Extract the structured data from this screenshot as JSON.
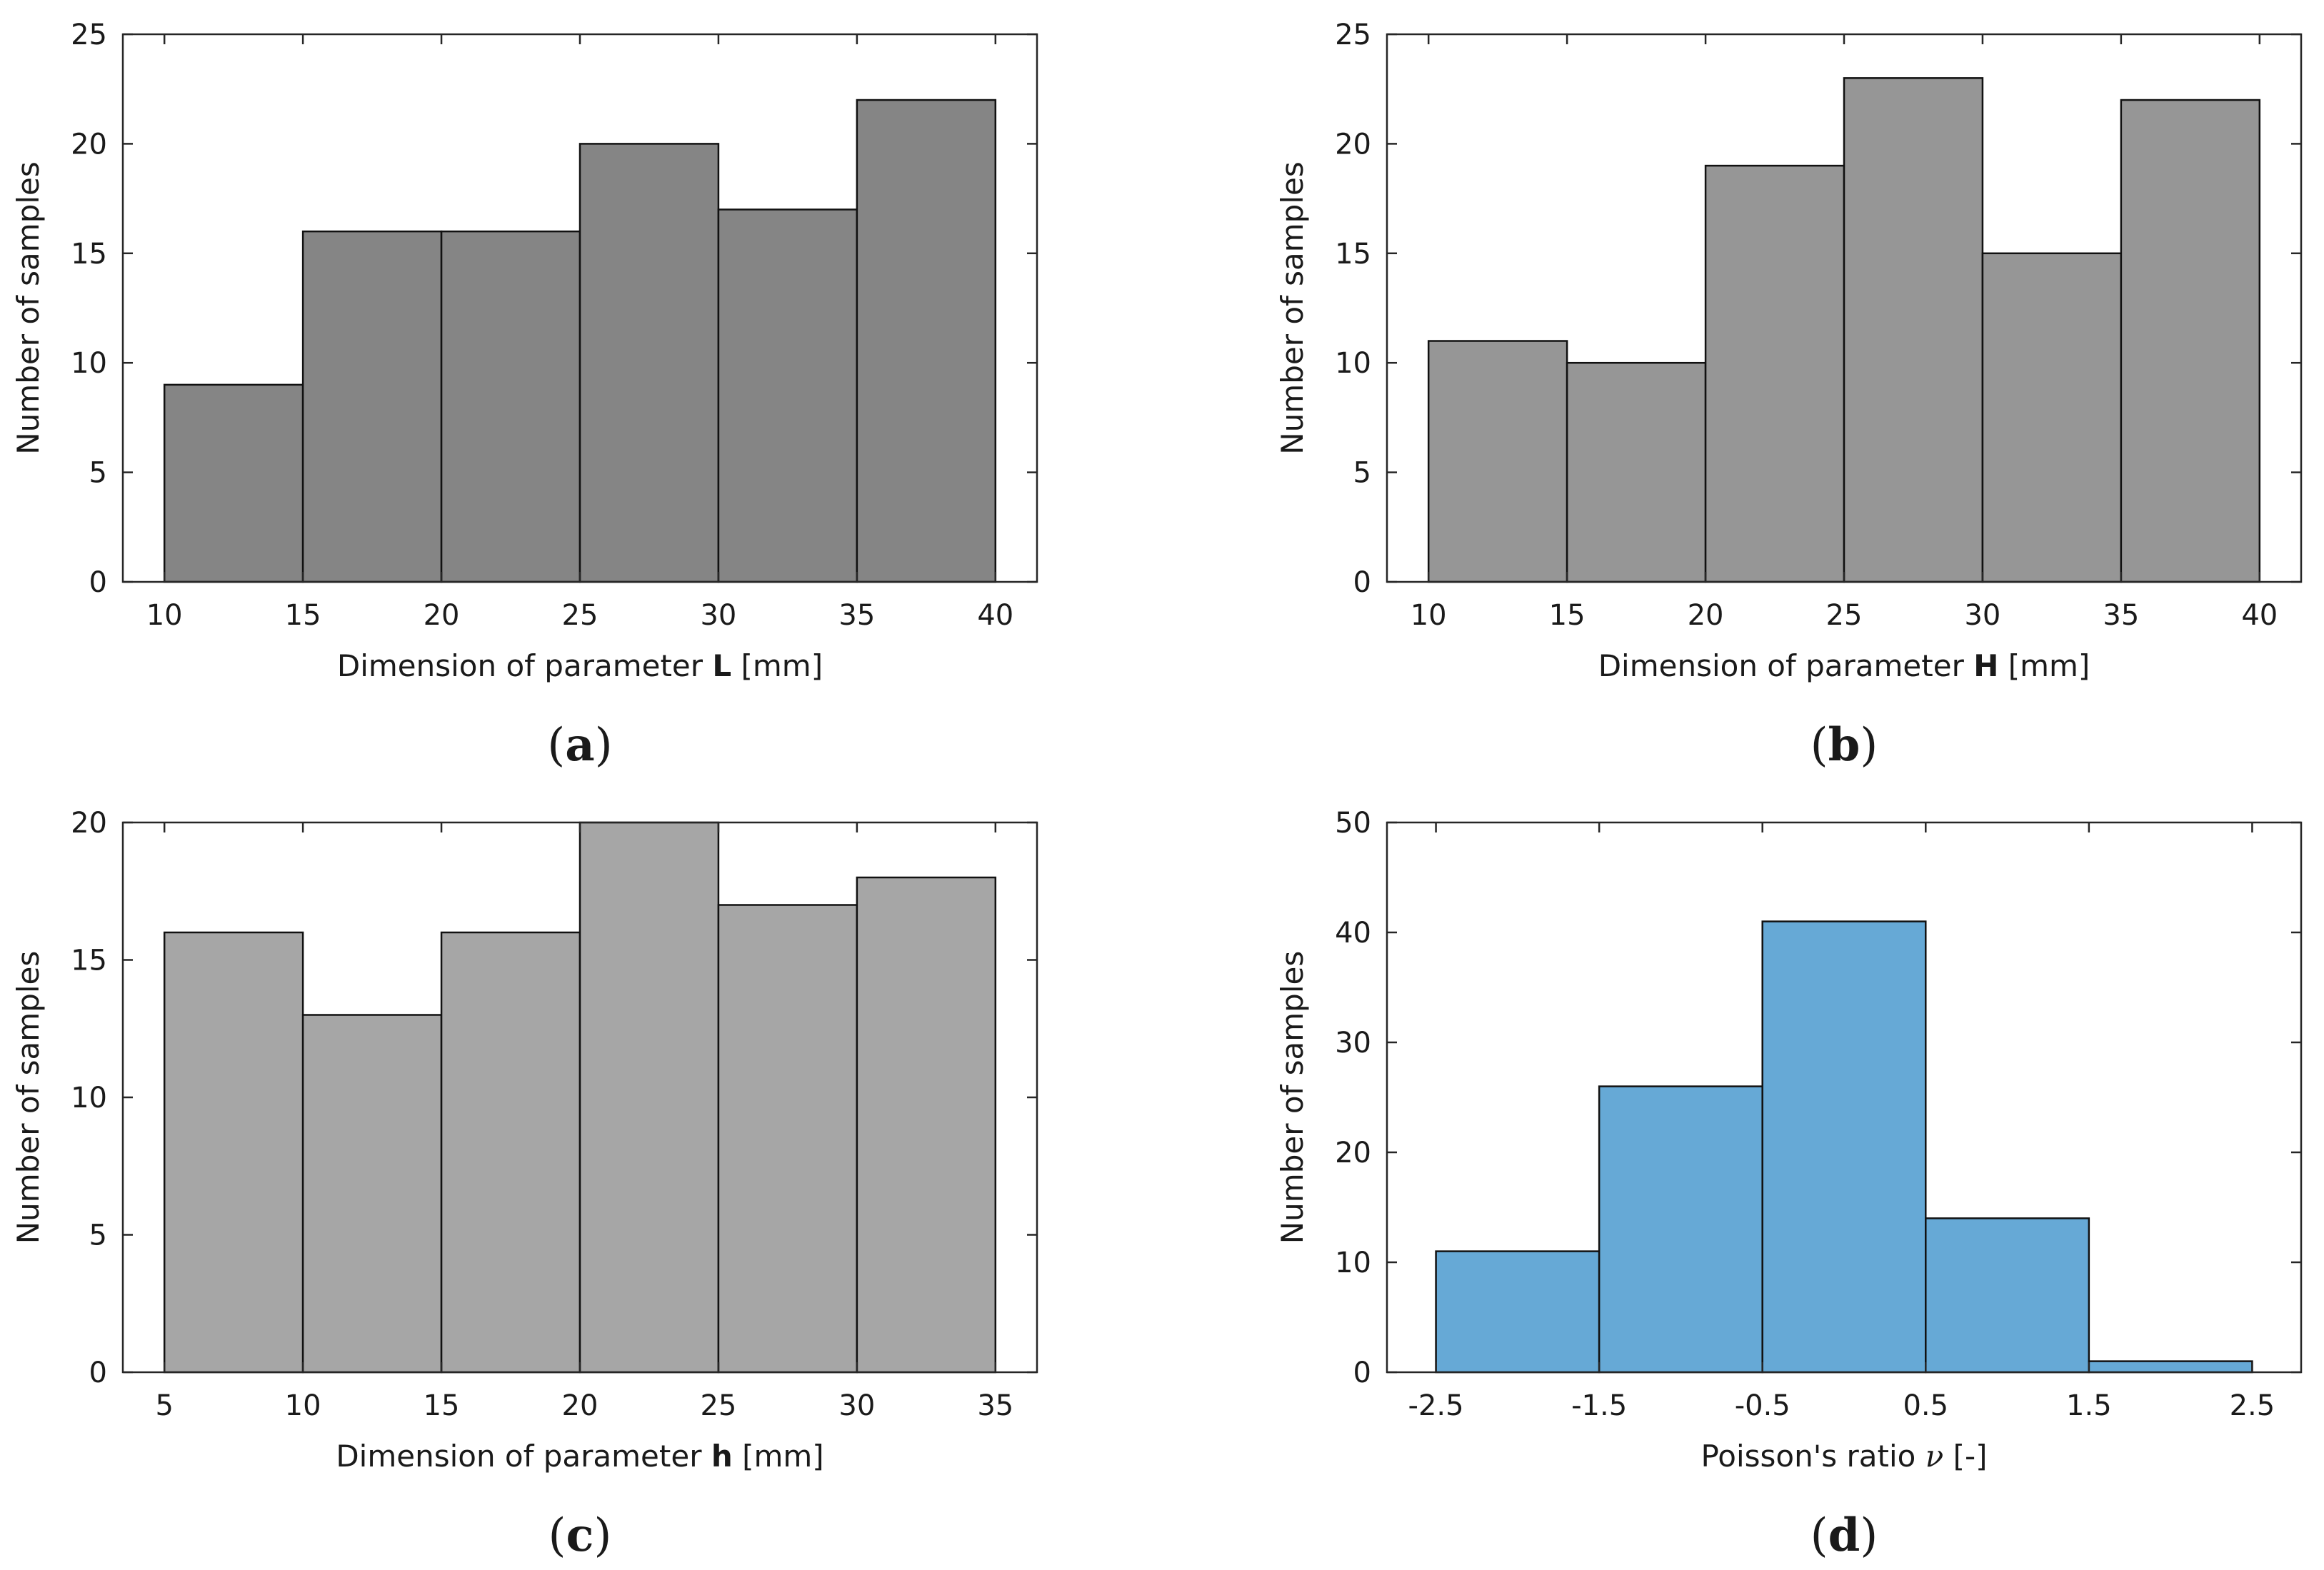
{
  "figure_title": "",
  "chart_data": [
    {
      "type": "bar",
      "panel_label": "(a)",
      "panel_letter": "a",
      "title": "",
      "xlabel_pre": "Dimension of parameter ",
      "xlabel_symbol": "L",
      "xlabel_post": " [mm]",
      "ylabel": "Number of samples",
      "bin_edges": [
        10,
        15,
        20,
        25,
        30,
        35,
        40
      ],
      "values": [
        9,
        16,
        16,
        20,
        17,
        22
      ],
      "xlim": [
        8.5,
        41.5
      ],
      "ylim": [
        0,
        25
      ],
      "xticks": [
        10,
        15,
        20,
        25,
        30,
        35,
        40
      ],
      "xtick_labels": [
        "10",
        "15",
        "20",
        "25",
        "30",
        "35",
        "40"
      ],
      "yticks": [
        0,
        5,
        10,
        15,
        20,
        25
      ],
      "ytick_labels": [
        "0",
        "5",
        "10",
        "15",
        "20",
        "25"
      ],
      "bar_color": "#858585",
      "grid": false
    },
    {
      "type": "bar",
      "panel_label": "(b)",
      "panel_letter": "b",
      "title": "",
      "xlabel_pre": "Dimension of parameter ",
      "xlabel_symbol": "H",
      "xlabel_post": " [mm]",
      "ylabel": "Number of samples",
      "bin_edges": [
        10,
        15,
        20,
        25,
        30,
        35,
        40
      ],
      "values": [
        11,
        10,
        19,
        23,
        15,
        22
      ],
      "xlim": [
        8.5,
        41.5
      ],
      "ylim": [
        0,
        25
      ],
      "xticks": [
        10,
        15,
        20,
        25,
        30,
        35,
        40
      ],
      "xtick_labels": [
        "10",
        "15",
        "20",
        "25",
        "30",
        "35",
        "40"
      ],
      "yticks": [
        0,
        5,
        10,
        15,
        20,
        25
      ],
      "ytick_labels": [
        "0",
        "5",
        "10",
        "15",
        "20",
        "25"
      ],
      "bar_color": "#969696",
      "grid": false
    },
    {
      "type": "bar",
      "panel_label": "(c)",
      "panel_letter": "c",
      "title": "",
      "xlabel_pre": "Dimension of parameter ",
      "xlabel_symbol": "h",
      "xlabel_post": " [mm]",
      "ylabel": "Number of samples",
      "bin_edges": [
        5,
        10,
        15,
        20,
        25,
        30,
        35
      ],
      "values": [
        16,
        13,
        16,
        20,
        17,
        18
      ],
      "xlim": [
        3.5,
        36.5
      ],
      "ylim": [
        0,
        20
      ],
      "xticks": [
        5,
        10,
        15,
        20,
        25,
        30,
        35
      ],
      "xtick_labels": [
        "5",
        "10",
        "15",
        "20",
        "25",
        "30",
        "35"
      ],
      "yticks": [
        0,
        5,
        10,
        15,
        20
      ],
      "ytick_labels": [
        "0",
        "5",
        "10",
        "15",
        "20"
      ],
      "bar_color": "#a6a6a6",
      "grid": false
    },
    {
      "type": "bar",
      "panel_label": "(d)",
      "panel_letter": "d",
      "title": "",
      "xlabel_pre": "Poisson's ratio ",
      "xlabel_symbol": "ν",
      "xlabel_post": " [-]",
      "ylabel": "Number of samples",
      "bin_edges": [
        -2.5,
        -1.5,
        -0.5,
        0.5,
        1.5,
        2.5
      ],
      "values": [
        11,
        26,
        41,
        14,
        1
      ],
      "xlim": [
        -2.8,
        2.8
      ],
      "ylim": [
        0,
        50
      ],
      "xticks": [
        -2.5,
        -1.5,
        -0.5,
        0.5,
        1.5,
        2.5
      ],
      "xtick_labels": [
        "-2.5",
        "-1.5",
        "-0.5",
        "0.5",
        "1.5",
        "2.5"
      ],
      "yticks": [
        0,
        10,
        20,
        30,
        40,
        50
      ],
      "ytick_labels": [
        "0",
        "10",
        "20",
        "30",
        "40",
        "50"
      ],
      "bar_color": "#66a9d6",
      "grid": false
    }
  ]
}
